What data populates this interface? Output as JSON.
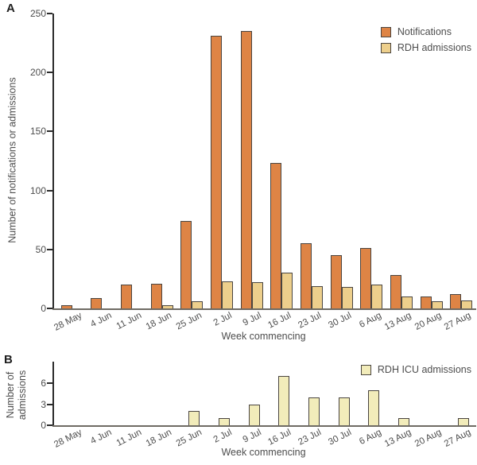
{
  "colors": {
    "notifications": "#DE8445",
    "rdh_admissions": "#EDCF8C",
    "icu_admissions": "#F2ECBA",
    "bar_border": "#4A4540",
    "axis": "#2B2B2B",
    "baseline": "#6F6B64",
    "text": "#4D4D4D"
  },
  "chart_data": [
    {
      "type": "bar",
      "panel": "A",
      "title": "",
      "categories": [
        "28 May",
        "4 Jun",
        "11 Jun",
        "18 Jun",
        "25 Jun",
        "2 Jul",
        "9 Jul",
        "16 Jul",
        "23 Jul",
        "30 Jul",
        "6 Aug",
        "13 Aug",
        "20 Aug",
        "27 Aug"
      ],
      "series": [
        {
          "name": "Notifications",
          "color": "#DE8445",
          "values": [
            3,
            9,
            20,
            21,
            74,
            231,
            235,
            123,
            55,
            45,
            51,
            28,
            10,
            12
          ]
        },
        {
          "name": "RDH admissions",
          "color": "#EDCF8C",
          "values": [
            0,
            0,
            0,
            3,
            6,
            23,
            22,
            30,
            19,
            18,
            20,
            10,
            6,
            7
          ]
        }
      ],
      "xlabel": "Week commencing",
      "ylabel": "Number of notifications or admissions",
      "ylim": [
        0,
        250
      ],
      "yticks": [
        0,
        50,
        100,
        150,
        200,
        250
      ],
      "grid": false,
      "legend_position": "top-right"
    },
    {
      "type": "bar",
      "panel": "B",
      "title": "",
      "categories": [
        "28 May",
        "4 Jun",
        "11 Jun",
        "18 Jun",
        "25 Jun",
        "2 Jul",
        "9 Jul",
        "16 Jul",
        "23 Jul",
        "30 Jul",
        "6 Aug",
        "13 Aug",
        "20 Aug",
        "27 Aug"
      ],
      "series": [
        {
          "name": "RDH ICU admissions",
          "color": "#F2ECBA",
          "values": [
            0,
            0,
            0,
            0,
            2,
            1,
            3,
            7,
            4,
            4,
            5,
            1,
            0,
            1
          ]
        }
      ],
      "xlabel": "Week commencing",
      "ylabel": "Number of admissions",
      "ylim": [
        0,
        7.5
      ],
      "yticks": [
        0,
        3,
        6
      ],
      "grid": false,
      "legend_position": "top-right"
    }
  ]
}
